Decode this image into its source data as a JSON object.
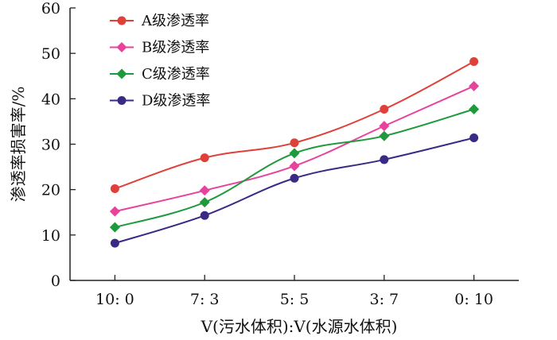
{
  "chart_data": {
    "type": "line",
    "categories": [
      "10: 0",
      "7: 3",
      "5: 5",
      "3: 7",
      "0: 10"
    ],
    "x_positions": [
      0.5,
      1.5,
      2.5,
      3.5,
      4.5
    ],
    "xlim": [
      0,
      5
    ],
    "ylim": [
      0,
      60
    ],
    "yticks": [
      0,
      10,
      20,
      30,
      40,
      50,
      60
    ],
    "xlabel": "V(污水体积):V(水源水体积)",
    "ylabel": "渗透率损害率/%",
    "legend_position": "top-left",
    "series": [
      {
        "name": "A级渗透率",
        "marker": "circle",
        "color": "#e0403a",
        "x": [
          0,
          1,
          2,
          3,
          4
        ],
        "values": [
          20.2,
          27.0,
          30.3,
          37.7,
          48.2
        ]
      },
      {
        "name": "B级渗透率",
        "marker": "diamond",
        "color": "#e8439c",
        "x": [
          0,
          1,
          2,
          3,
          4
        ],
        "values": [
          15.2,
          19.8,
          25.2,
          34.0,
          42.8
        ]
      },
      {
        "name": "C级渗透率",
        "marker": "diamond",
        "color": "#1e9a3c",
        "x": [
          0,
          1,
          2,
          3,
          4
        ],
        "values": [
          11.7,
          17.2,
          28.0,
          31.8,
          37.7
        ]
      },
      {
        "name": "D级渗透率",
        "marker": "circle",
        "color": "#3b2a85",
        "x": [
          0,
          1,
          2,
          3,
          4
        ],
        "values": [
          8.2,
          14.3,
          22.5,
          26.6,
          31.4
        ]
      }
    ]
  }
}
